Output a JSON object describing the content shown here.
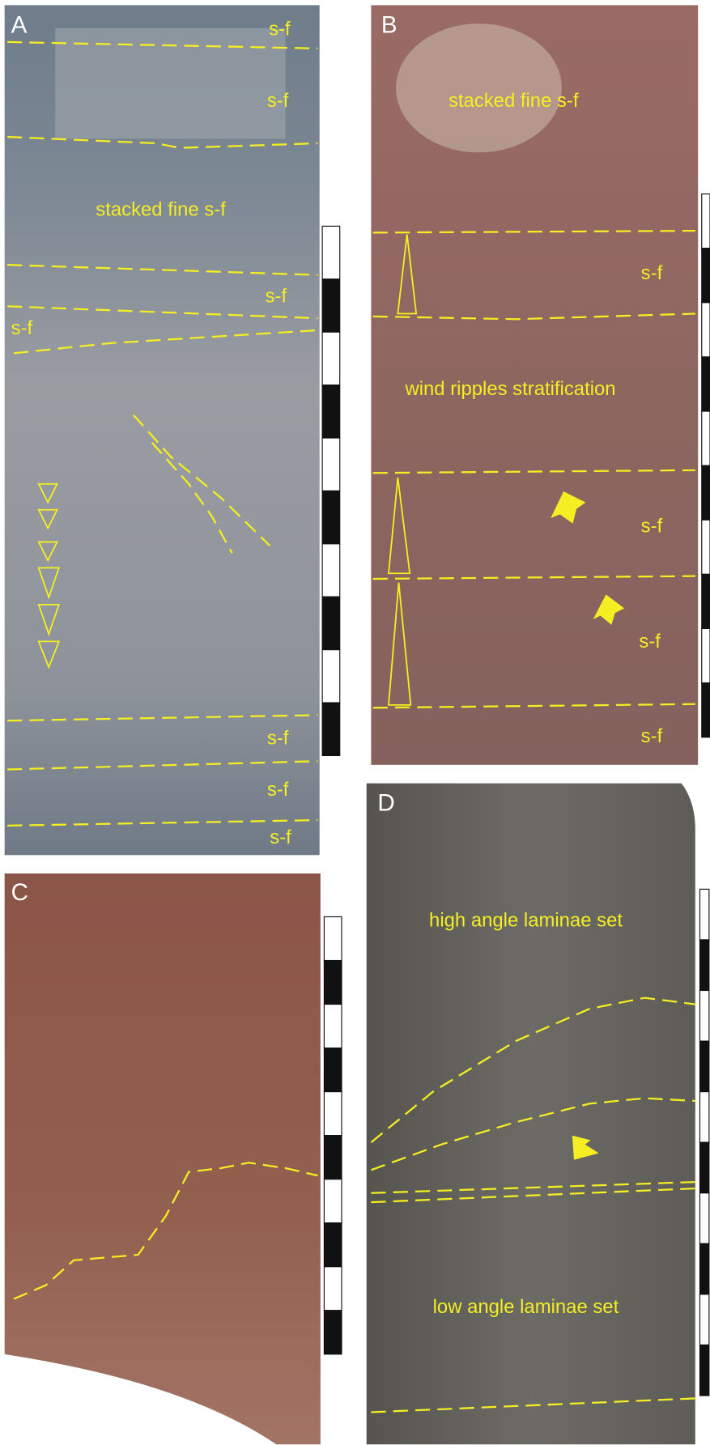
{
  "panels": [
    {
      "label": "A",
      "annotations": [
        "s-f",
        "s-f",
        "stacked fine s-f",
        "s-f",
        "s-f",
        "s-f",
        "s-f",
        "s-f"
      ]
    },
    {
      "label": "B",
      "annotations": [
        "stacked fine s-f",
        "s-f",
        "wind ripples stratification",
        "s-f",
        "s-f",
        "s-f"
      ]
    },
    {
      "label": "C",
      "annotations": []
    },
    {
      "label": "D",
      "annotations": [
        "high angle laminae set",
        "low angle laminae set"
      ]
    }
  ]
}
